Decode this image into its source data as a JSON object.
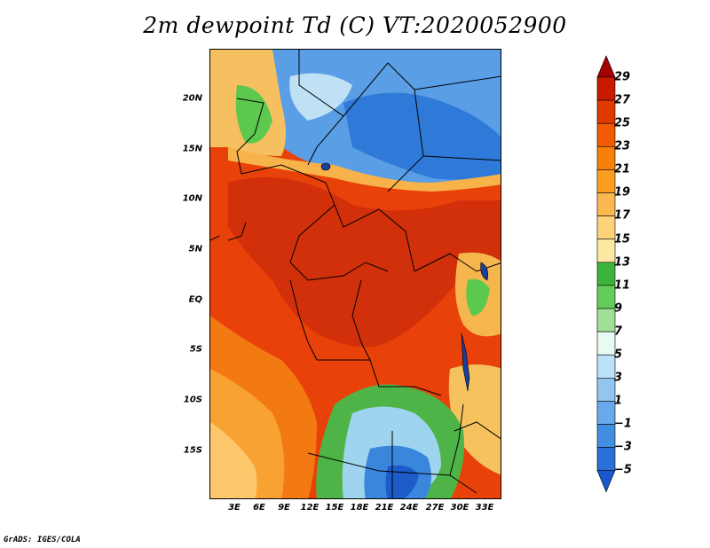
{
  "title": "2m dewpoint Td (C) VT:2020052900",
  "credit": "GrADS: IGES/COLA",
  "map": {
    "lat_ticks": [
      "20N",
      "15N",
      "10N",
      "5N",
      "EQ",
      "5S",
      "10S",
      "15S"
    ],
    "lon_ticks": [
      "3E",
      "6E",
      "9E",
      "12E",
      "15E",
      "18E",
      "21E",
      "24E",
      "27E",
      "30E",
      "33E"
    ]
  },
  "colorbar": {
    "labels": [
      "29",
      "27",
      "25",
      "23",
      "21",
      "19",
      "17",
      "15",
      "13",
      "11",
      "9",
      "7",
      "5",
      "3",
      "1",
      "−1",
      "−3",
      "−5"
    ],
    "colors": [
      "#a50000",
      "#c81a00",
      "#e03a00",
      "#f05a00",
      "#f5800a",
      "#fa9d20",
      "#fcb850",
      "#fdd27a",
      "#fde9a4",
      "#3cb43c",
      "#64cc5a",
      "#a0e096",
      "#e8fbf0",
      "#bde2f7",
      "#92c6f0",
      "#6aaaea",
      "#428fe2",
      "#2a70d8",
      "#1a58cc"
    ]
  }
}
